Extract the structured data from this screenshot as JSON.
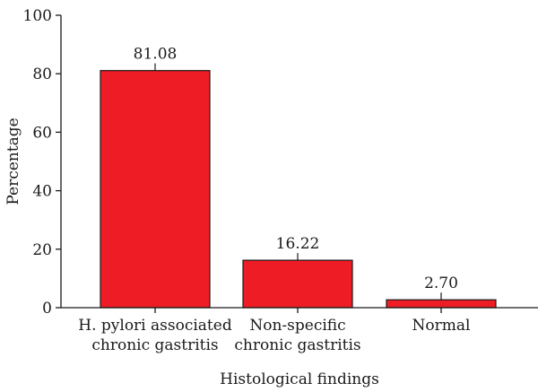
{
  "chart_data": {
    "type": "bar",
    "categories": [
      [
        "H. pylori associated",
        "chronic gastritis"
      ],
      [
        "Non-specific",
        "chronic gastritis"
      ],
      [
        "Normal"
      ]
    ],
    "values": [
      81.08,
      16.22,
      2.7
    ],
    "data_labels": [
      "81.08",
      "16.22",
      "2.70"
    ],
    "xlabel": "Histological findings",
    "ylabel": "Percentage",
    "ylim": [
      0,
      100
    ],
    "yticks": [
      "0",
      "20",
      "40",
      "60",
      "80",
      "100"
    ],
    "grid": false,
    "legend": "none",
    "colors": {
      "bar": "#ee1c25",
      "outline": "#1a1a1a",
      "axis": "#1a1a1a"
    }
  }
}
